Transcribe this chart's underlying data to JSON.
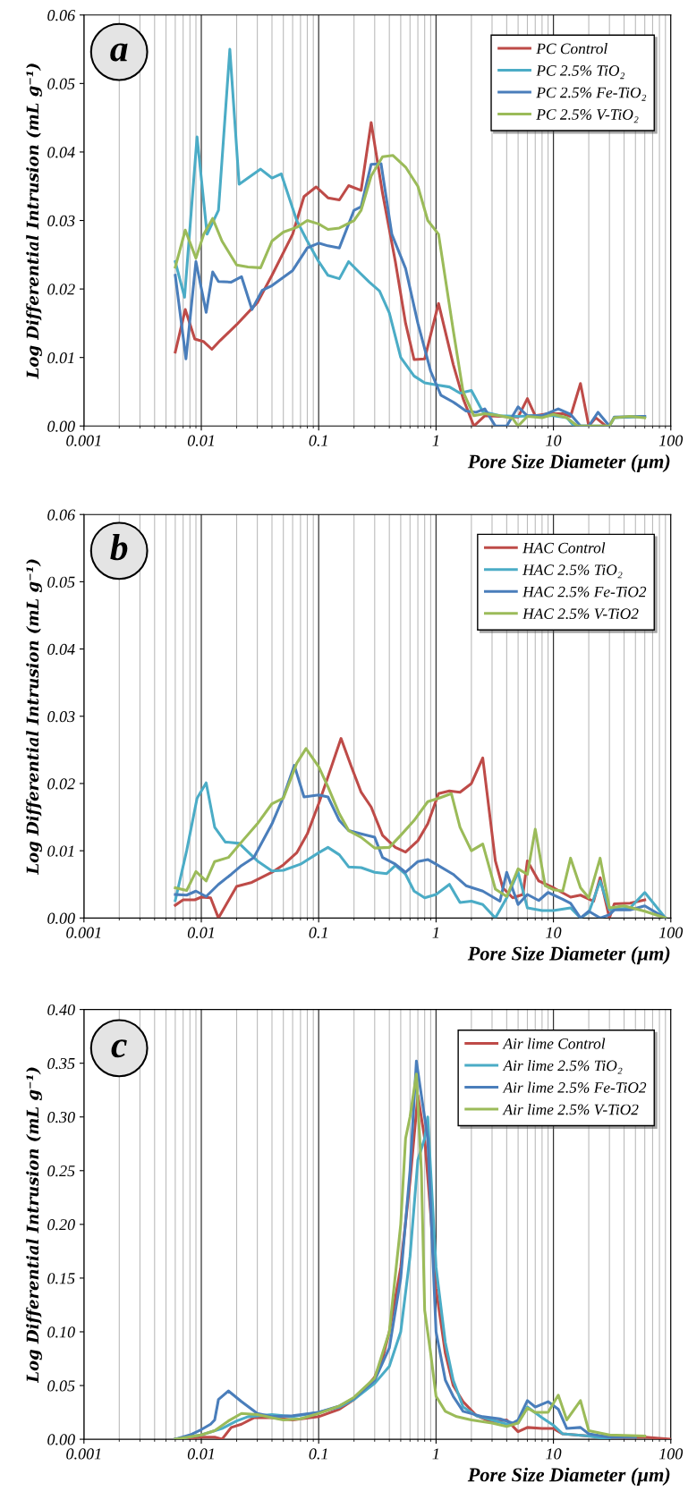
{
  "chart_data": [
    {
      "type": "line",
      "annotations": [
        "a"
      ],
      "xlabel": "Pore Size Diameter (µm)",
      "ylabel": "Log Differential Intrusion (mL g⁻¹)",
      "log": "x",
      "grid": "x",
      "legend": "top right",
      "marker": "none",
      "line_style": "solid",
      "xlim": [
        0.001,
        100
      ],
      "xticks": [
        0.001,
        0.01,
        0.1,
        1,
        10,
        100
      ],
      "ylim": [
        0,
        0.06
      ],
      "yticks": [
        {
          "value": 0,
          "label": "0.00"
        },
        {
          "value": 0.01,
          "label": "0.01"
        },
        {
          "value": 0.02,
          "label": "0.02"
        },
        {
          "value": 0.03,
          "label": "0.03"
        },
        {
          "value": 0.04,
          "label": "0.04"
        },
        {
          "value": 0.05,
          "label": "0.05"
        },
        {
          "value": 0.06,
          "label": "0.06"
        }
      ],
      "series": [
        {
          "name": "PC Control",
          "color": "#be4b48",
          "x": [
            0.006,
            0.0073,
            0.0088,
            0.0105,
            0.0123,
            0.0145,
            0.02,
            0.03,
            0.04,
            0.06,
            0.075,
            0.095,
            0.12,
            0.15,
            0.18,
            0.23,
            0.28,
            0.35,
            0.45,
            0.55,
            0.65,
            0.8,
            1.05,
            1.4,
            1.7,
            2.1,
            2.6,
            3.5,
            5,
            6,
            7,
            9,
            12,
            14,
            17,
            20,
            23,
            28
          ],
          "values": [
            0.0108,
            0.017,
            0.0127,
            0.0123,
            0.0112,
            0.0125,
            0.0148,
            0.018,
            0.022,
            0.028,
            0.0335,
            0.0349,
            0.0333,
            0.033,
            0.0351,
            0.0344,
            0.0443,
            0.034,
            0.024,
            0.015,
            0.0097,
            0.0098,
            0.0179,
            0.009,
            0.004,
            0.0,
            0.0015,
            0.0014,
            0.0013,
            0.004,
            0.0015,
            0.0018,
            0.0018,
            0.0014,
            0.0062,
            0.0,
            0.0012,
            0.0
          ]
        },
        {
          "name": "PC 2.5% TiO₂",
          "color": "#4bacc6",
          "x": [
            0.006,
            0.0072,
            0.0092,
            0.0112,
            0.014,
            0.0175,
            0.021,
            0.032,
            0.04,
            0.048,
            0.065,
            0.08,
            0.1,
            0.12,
            0.15,
            0.18,
            0.22,
            0.27,
            0.33,
            0.4,
            0.5,
            0.65,
            0.8,
            1.0,
            1.3,
            1.6,
            2.0,
            2.5,
            3.5,
            5,
            7,
            10,
            13,
            15,
            20,
            30,
            33,
            60
          ],
          "values": [
            0.024,
            0.0188,
            0.0422,
            0.028,
            0.0315,
            0.055,
            0.0353,
            0.0375,
            0.0362,
            0.0368,
            0.03,
            0.027,
            0.024,
            0.022,
            0.0215,
            0.024,
            0.0225,
            0.021,
            0.0197,
            0.0165,
            0.01,
            0.0073,
            0.0063,
            0.006,
            0.0057,
            0.0048,
            0.0052,
            0.0021,
            0.0015,
            0.0014,
            0.0015,
            0.0015,
            0.0012,
            0.0,
            0.0,
            0.0,
            0.0012,
            0.0014
          ]
        },
        {
          "name": "PC 2.5% Fe-TiO₂",
          "color": "#4a7ebb",
          "x": [
            0.006,
            0.0074,
            0.009,
            0.011,
            0.0125,
            0.014,
            0.018,
            0.022,
            0.027,
            0.033,
            0.04,
            0.06,
            0.08,
            0.1,
            0.12,
            0.15,
            0.2,
            0.23,
            0.28,
            0.34,
            0.42,
            0.55,
            0.7,
            0.9,
            1.1,
            1.4,
            1.8,
            2.2,
            2.6,
            3.2,
            4,
            5,
            6,
            8,
            11,
            14,
            17,
            20,
            24,
            30,
            33,
            60
          ],
          "values": [
            0.022,
            0.0098,
            0.024,
            0.0166,
            0.0225,
            0.0211,
            0.021,
            0.0218,
            0.017,
            0.0198,
            0.0205,
            0.0227,
            0.026,
            0.0267,
            0.0263,
            0.026,
            0.0315,
            0.032,
            0.0382,
            0.0383,
            0.028,
            0.023,
            0.015,
            0.008,
            0.0045,
            0.0035,
            0.0022,
            0.002,
            0.0025,
            0.0,
            0.0,
            0.0028,
            0.0015,
            0.0015,
            0.0025,
            0.0017,
            0.0,
            0.0,
            0.002,
            0.0,
            0.0013,
            0.0014
          ]
        },
        {
          "name": "PC 2.5% V-TiO₂",
          "color": "#9bbb59",
          "x": [
            0.006,
            0.0073,
            0.009,
            0.0105,
            0.0125,
            0.015,
            0.02,
            0.025,
            0.032,
            0.04,
            0.05,
            0.065,
            0.08,
            0.1,
            0.12,
            0.15,
            0.2,
            0.23,
            0.28,
            0.35,
            0.43,
            0.55,
            0.7,
            0.85,
            1.05,
            1.4,
            1.7,
            2.1,
            2.6,
            3.5,
            4.5,
            5,
            6,
            8,
            10,
            13,
            16,
            20,
            30,
            33,
            45,
            60
          ],
          "values": [
            0.0232,
            0.0286,
            0.0245,
            0.028,
            0.0303,
            0.027,
            0.0235,
            0.0232,
            0.0231,
            0.027,
            0.0283,
            0.029,
            0.03,
            0.0295,
            0.0287,
            0.0289,
            0.03,
            0.0315,
            0.0365,
            0.0393,
            0.0395,
            0.0378,
            0.035,
            0.03,
            0.028,
            0.014,
            0.005,
            0.0015,
            0.0018,
            0.0015,
            0.0011,
            0.0,
            0.0014,
            0.0012,
            0.0017,
            0.0012,
            0.0,
            0.0,
            0.0,
            0.0012,
            0.0014,
            0.0012
          ]
        }
      ]
    },
    {
      "type": "line",
      "annotations": [
        "b"
      ],
      "xlabel": "Pore Size Diameter (µm)",
      "ylabel": "Log Differential Intrusion (mL g⁻¹)",
      "log": "x",
      "grid": "x",
      "legend": "top right",
      "marker": "none",
      "line_style": "solid",
      "xlim": [
        0.001,
        100
      ],
      "xticks": [
        0.001,
        0.01,
        0.1,
        1,
        10,
        100
      ],
      "ylim": [
        0,
        0.06
      ],
      "yticks": [
        {
          "value": 0,
          "label": "0.00"
        },
        {
          "value": 0.01,
          "label": "0.01"
        },
        {
          "value": 0.02,
          "label": "0.02"
        },
        {
          "value": 0.03,
          "label": "0.03"
        },
        {
          "value": 0.04,
          "label": "0.04"
        },
        {
          "value": 0.05,
          "label": "0.05"
        },
        {
          "value": 0.06,
          "label": "0.06"
        }
      ],
      "series": [
        {
          "name": "HAC Control",
          "color": "#be4b48",
          "x": [
            0.006,
            0.007,
            0.0088,
            0.01,
            0.012,
            0.014,
            0.02,
            0.027,
            0.04,
            0.05,
            0.065,
            0.08,
            0.1,
            0.12,
            0.155,
            0.19,
            0.23,
            0.28,
            0.35,
            0.45,
            0.55,
            0.7,
            0.85,
            1.05,
            1.3,
            1.6,
            2.0,
            2.5,
            3.2,
            3.7,
            4.5,
            5.5,
            6,
            7.5,
            10,
            14,
            17,
            22,
            25,
            30,
            33,
            45,
            60
          ],
          "values": [
            0.0019,
            0.0027,
            0.0027,
            0.0031,
            0.003,
            0.0,
            0.0047,
            0.0053,
            0.0068,
            0.0079,
            0.0097,
            0.0125,
            0.017,
            0.021,
            0.0267,
            0.0225,
            0.0187,
            0.0165,
            0.0123,
            0.0105,
            0.0098,
            0.0115,
            0.014,
            0.0185,
            0.0189,
            0.0187,
            0.02,
            0.0238,
            0.0085,
            0.0045,
            0.003,
            0.0035,
            0.0085,
            0.0055,
            0.0045,
            0.0031,
            0.0034,
            0.0025,
            0.006,
            0.0,
            0.0021,
            0.0022,
            0.0027
          ]
        },
        {
          "name": "HAC 2.5% TiO₂",
          "color": "#4bacc6",
          "x": [
            0.006,
            0.0075,
            0.0092,
            0.011,
            0.013,
            0.016,
            0.021,
            0.03,
            0.04,
            0.05,
            0.07,
            0.1,
            0.12,
            0.15,
            0.18,
            0.23,
            0.3,
            0.38,
            0.45,
            0.55,
            0.65,
            0.8,
            1.0,
            1.3,
            1.6,
            2.0,
            2.5,
            3.2,
            4,
            5,
            6,
            8,
            10,
            14,
            17,
            20,
            25,
            30,
            45,
            60,
            90
          ],
          "values": [
            0.0026,
            0.01,
            0.0178,
            0.0201,
            0.0135,
            0.0113,
            0.0111,
            0.0085,
            0.007,
            0.0071,
            0.008,
            0.0097,
            0.0105,
            0.0094,
            0.0076,
            0.0075,
            0.0068,
            0.0066,
            0.0078,
            0.0065,
            0.004,
            0.003,
            0.0035,
            0.005,
            0.0023,
            0.0025,
            0.002,
            0.0,
            0.003,
            0.0068,
            0.0015,
            0.0011,
            0.0011,
            0.0015,
            0.0,
            0.0008,
            0.0055,
            0.0012,
            0.0015,
            0.0038,
            0.0
          ]
        },
        {
          "name": "HAC 2.5% Fe-TiO2",
          "color": "#4a7ebb",
          "x": [
            0.006,
            0.0075,
            0.009,
            0.011,
            0.014,
            0.018,
            0.022,
            0.028,
            0.04,
            0.05,
            0.062,
            0.075,
            0.1,
            0.12,
            0.15,
            0.18,
            0.23,
            0.3,
            0.35,
            0.45,
            0.55,
            0.7,
            0.85,
            1.0,
            1.4,
            1.8,
            2.5,
            3.5,
            4,
            5,
            6,
            7.5,
            9,
            12,
            14,
            17,
            20,
            25,
            30,
            33,
            45,
            60,
            90
          ],
          "values": [
            0.0035,
            0.0034,
            0.004,
            0.0032,
            0.005,
            0.0065,
            0.0078,
            0.009,
            0.014,
            0.018,
            0.0227,
            0.018,
            0.0183,
            0.018,
            0.0145,
            0.013,
            0.0125,
            0.012,
            0.009,
            0.008,
            0.0068,
            0.0084,
            0.0087,
            0.008,
            0.0065,
            0.0048,
            0.004,
            0.0025,
            0.0068,
            0.002,
            0.0035,
            0.0026,
            0.0038,
            0.0028,
            0.0022,
            0.0,
            0.001,
            0.0,
            0.0005,
            0.0012,
            0.0012,
            0.0018,
            0.0
          ]
        },
        {
          "name": "HAC 2.5% V-TiO2",
          "color": "#9bbb59",
          "x": [
            0.006,
            0.0075,
            0.009,
            0.011,
            0.013,
            0.017,
            0.022,
            0.03,
            0.04,
            0.05,
            0.065,
            0.078,
            0.1,
            0.12,
            0.15,
            0.18,
            0.23,
            0.3,
            0.4,
            0.5,
            0.65,
            0.85,
            1.05,
            1.35,
            1.6,
            2.0,
            2.5,
            3.2,
            4,
            5,
            6,
            7,
            8.5,
            10,
            12,
            14,
            17,
            20,
            25,
            30,
            40,
            60,
            90
          ],
          "values": [
            0.0045,
            0.0041,
            0.0069,
            0.0055,
            0.0084,
            0.009,
            0.0113,
            0.014,
            0.017,
            0.0178,
            0.023,
            0.0252,
            0.0225,
            0.0195,
            0.0155,
            0.013,
            0.012,
            0.0104,
            0.0105,
            0.0123,
            0.0145,
            0.0173,
            0.0178,
            0.0185,
            0.0135,
            0.01,
            0.011,
            0.0043,
            0.0032,
            0.0073,
            0.0065,
            0.0132,
            0.0048,
            0.0042,
            0.004,
            0.0089,
            0.0045,
            0.003,
            0.0089,
            0.0015,
            0.0018,
            0.001,
            0.0
          ]
        }
      ]
    },
    {
      "type": "line",
      "annotations": [
        "c"
      ],
      "xlabel": "Pore Size Diameter (µm)",
      "ylabel": "Log Differential Intrusion (mL g⁻¹)",
      "log": "x",
      "grid": "x",
      "legend": "top right",
      "marker": "none",
      "line_style": "solid",
      "xlim": [
        0.001,
        100
      ],
      "xticks": [
        0.001,
        0.01,
        0.1,
        1,
        10,
        100
      ],
      "ylim": [
        0,
        0.4
      ],
      "yticks": [
        {
          "value": 0,
          "label": "0.00"
        },
        {
          "value": 0.05,
          "label": "0.05"
        },
        {
          "value": 0.1,
          "label": "0.10"
        },
        {
          "value": 0.15,
          "label": "0.15"
        },
        {
          "value": 0.2,
          "label": "0.20"
        },
        {
          "value": 0.25,
          "label": "0.25"
        },
        {
          "value": 0.3,
          "label": "0.30"
        },
        {
          "value": 0.35,
          "label": "0.35"
        },
        {
          "value": 0.4,
          "label": "0.40"
        }
      ],
      "series": [
        {
          "name": "Air lime Control",
          "color": "#be4b48",
          "x": [
            0.006,
            0.01,
            0.013,
            0.015,
            0.018,
            0.022,
            0.028,
            0.04,
            0.06,
            0.1,
            0.15,
            0.2,
            0.25,
            0.3,
            0.35,
            0.4,
            0.5,
            0.6,
            0.7,
            0.8,
            0.9,
            1.0,
            1.2,
            1.4,
            1.7,
            2.2,
            3,
            4,
            5,
            6,
            8,
            10,
            12,
            20,
            40,
            60,
            100
          ],
          "values": [
            0.0,
            0.002,
            0.002,
            0.0,
            0.011,
            0.014,
            0.02,
            0.02,
            0.018,
            0.021,
            0.028,
            0.037,
            0.047,
            0.058,
            0.075,
            0.1,
            0.16,
            0.24,
            0.32,
            0.28,
            0.21,
            0.14,
            0.08,
            0.05,
            0.035,
            0.022,
            0.016,
            0.018,
            0.007,
            0.011,
            0.01,
            0.01,
            0.005,
            0.003,
            0.002,
            0.002,
            0.0
          ]
        },
        {
          "name": "Air lime 2.5% TiO₂",
          "color": "#4bacc6",
          "x": [
            0.006,
            0.01,
            0.015,
            0.02,
            0.025,
            0.04,
            0.06,
            0.1,
            0.15,
            0.2,
            0.3,
            0.4,
            0.5,
            0.6,
            0.7,
            0.8,
            0.85,
            0.9,
            1.0,
            1.2,
            1.4,
            1.7,
            2.2,
            3,
            4,
            5,
            6,
            8,
            10,
            12,
            20,
            30
          ],
          "values": [
            0.0,
            0.004,
            0.01,
            0.017,
            0.021,
            0.023,
            0.021,
            0.025,
            0.03,
            0.037,
            0.052,
            0.068,
            0.1,
            0.17,
            0.26,
            0.28,
            0.3,
            0.25,
            0.16,
            0.09,
            0.055,
            0.03,
            0.022,
            0.018,
            0.014,
            0.015,
            0.03,
            0.02,
            0.013,
            0.005,
            0.003,
            0.0
          ]
        },
        {
          "name": "Air lime 2.5% Fe-TiO2",
          "color": "#4a7ebb",
          "x": [
            0.006,
            0.008,
            0.01,
            0.012,
            0.013,
            0.014,
            0.017,
            0.022,
            0.03,
            0.04,
            0.06,
            0.1,
            0.15,
            0.2,
            0.3,
            0.4,
            0.5,
            0.6,
            0.68,
            0.75,
            0.85,
            1.0,
            1.2,
            1.4,
            1.7,
            2.5,
            3.5,
            4.5,
            5,
            6,
            7,
            9,
            11,
            13,
            17,
            20,
            30,
            50
          ],
          "values": [
            0.0,
            0.004,
            0.009,
            0.014,
            0.018,
            0.037,
            0.045,
            0.035,
            0.024,
            0.021,
            0.022,
            0.025,
            0.031,
            0.038,
            0.055,
            0.085,
            0.15,
            0.25,
            0.352,
            0.32,
            0.28,
            0.1,
            0.055,
            0.04,
            0.026,
            0.021,
            0.019,
            0.015,
            0.018,
            0.036,
            0.03,
            0.035,
            0.028,
            0.01,
            0.011,
            0.005,
            0.002,
            0.002
          ]
        },
        {
          "name": "Air lime 2.5% V-TiO2",
          "color": "#9bbb59",
          "x": [
            0.006,
            0.01,
            0.013,
            0.017,
            0.022,
            0.03,
            0.04,
            0.05,
            0.07,
            0.1,
            0.15,
            0.2,
            0.3,
            0.4,
            0.5,
            0.55,
            0.6,
            0.68,
            0.75,
            0.8,
            0.9,
            1.0,
            1.2,
            1.5,
            2,
            3,
            4,
            5,
            6,
            7,
            9,
            11,
            13,
            17,
            20,
            30,
            60
          ],
          "values": [
            0.0,
            0.004,
            0.008,
            0.017,
            0.024,
            0.023,
            0.02,
            0.018,
            0.019,
            0.024,
            0.031,
            0.039,
            0.057,
            0.1,
            0.2,
            0.28,
            0.3,
            0.34,
            0.25,
            0.12,
            0.08,
            0.04,
            0.026,
            0.021,
            0.018,
            0.015,
            0.012,
            0.015,
            0.029,
            0.025,
            0.025,
            0.041,
            0.018,
            0.036,
            0.008,
            0.004,
            0.003
          ]
        }
      ]
    }
  ]
}
